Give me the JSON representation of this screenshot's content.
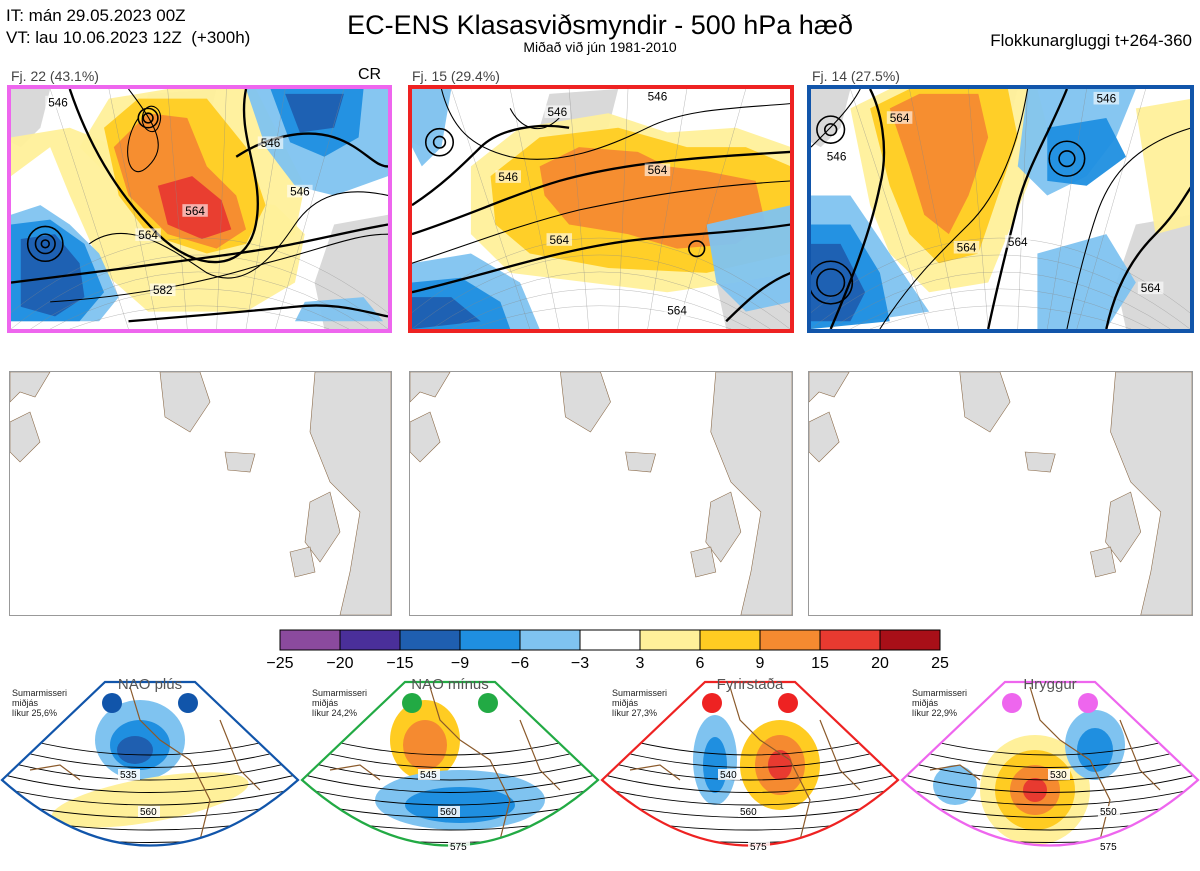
{
  "header": {
    "it_line": "IT: mán 29.05.2023 00Z",
    "vt_line": "VT: lau 10.06.2023 12Z  (+300h)",
    "title": "EC-ENS Klasasviðsmyndir - 500 hPa hæð",
    "subtitle": "Miðað við jún 1981-2010",
    "window": "Flokkunargluggi t+264-360"
  },
  "panels": [
    {
      "label": "Fj. 22 (43.1%)",
      "frame_color": "#ee66ee",
      "tag": "CR",
      "contour_labels": [
        "546",
        "546",
        "564",
        "546",
        "564",
        "582"
      ]
    },
    {
      "label": "Fj. 15 (29.4%)",
      "frame_color": "#ee2222",
      "tag": "",
      "contour_labels": [
        "546",
        "546",
        "546",
        "564",
        "564",
        "564",
        "564"
      ]
    },
    {
      "label": "Fj. 14 (27.5%)",
      "frame_color": "#1155aa",
      "tag": "",
      "contour_labels": [
        "564",
        "546",
        "546",
        "564",
        "564",
        "564"
      ]
    }
  ],
  "colorbar": {
    "ticks": [
      "−25",
      "−20",
      "−15",
      "−9",
      "−6",
      "−3",
      "3",
      "6",
      "9",
      "15",
      "20",
      "25"
    ],
    "colors": [
      "#8b4a9e",
      "#4a2f9a",
      "#1f5fb0",
      "#1f8fe0",
      "#7fc3f0",
      "#ffffff",
      "#fff09a",
      "#ffcc22",
      "#f58a30",
      "#e83a30",
      "#a80f18"
    ]
  },
  "chart_data": {
    "type": "heatmap",
    "title": "EC-ENS Klasasviðsmyndir - 500 hPa hæð",
    "variable": "500 hPa height anomaly (dam) with height contours",
    "colorbar_levels": [
      -25,
      -20,
      -15,
      -9,
      -6,
      -3,
      3,
      6,
      9,
      15,
      20,
      25
    ],
    "clusters": [
      {
        "name": "Fj. 22",
        "probability_pct": 43.1,
        "regime_color": "#ee66ee",
        "regime": "Hryggur",
        "contours": [
          546,
          564,
          582
        ]
      },
      {
        "name": "Fj. 15",
        "probability_pct": 29.4,
        "regime_color": "#ee2222",
        "regime": "Fyrirstaða",
        "contours": [
          546,
          564
        ]
      },
      {
        "name": "Fj. 14",
        "probability_pct": 27.5,
        "regime_color": "#1155aa",
        "regime": "NAO plús",
        "contours": [
          546,
          564
        ]
      }
    ]
  },
  "regimes": [
    {
      "name": "NAO plús",
      "season": "Sumarmisseri\nmiðjás\nlíkur 25,6%",
      "color": "#1155aa",
      "labels": [
        "535",
        "560"
      ]
    },
    {
      "name": "NAO mínus",
      "season": "Sumarmisseri\nmiðjás\nlíkur 24,2%",
      "color": "#22aa44",
      "labels": [
        "545",
        "560",
        "575"
      ]
    },
    {
      "name": "Fyrirstaða",
      "season": "Sumarmisseri\nmiðjás\nlíkur 27,3%",
      "color": "#ee2222",
      "labels": [
        "540",
        "560",
        "575"
      ]
    },
    {
      "name": "Hryggur",
      "season": "Sumarmisseri\nmiðjás\nlíkur 22,9%",
      "color": "#ee66ee",
      "labels": [
        "530",
        "550",
        "575"
      ]
    }
  ]
}
